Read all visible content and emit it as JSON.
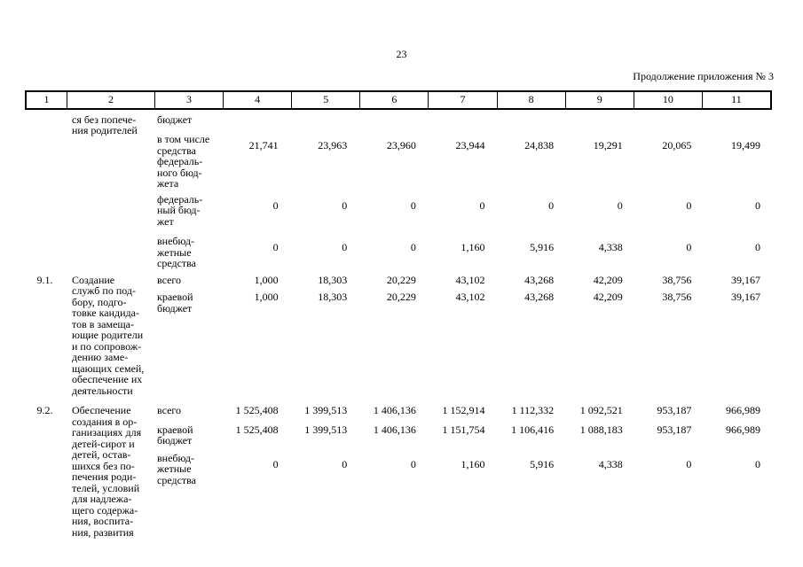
{
  "page": {
    "number": "23",
    "continuation": "Продолжение приложения № 3"
  },
  "table": {
    "columns": [
      "1",
      "2",
      "3",
      "4",
      "5",
      "6",
      "7",
      "8",
      "9",
      "10",
      "11"
    ],
    "sections": [
      {
        "num": "",
        "name": "ся без попече-\nния родителей",
        "rows": [
          {
            "label": "бюджет",
            "values": []
          },
          {
            "label": "в том числе\nсредства\nфедераль-\nного бюд-\nжета",
            "values": [
              "21,741",
              "23,963",
              "23,960",
              "23,944",
              "24,838",
              "19,291",
              "20,065",
              "19,499"
            ]
          },
          {
            "label": "федераль-\nный бюд-\nжет",
            "values": [
              "0",
              "0",
              "0",
              "0",
              "0",
              "0",
              "0",
              "0"
            ]
          },
          {
            "label": "внебюд-\nжетные\nсредства",
            "values": [
              "0",
              "0",
              "0",
              "1,160",
              "5,916",
              "4,338",
              "0",
              "0"
            ]
          }
        ]
      },
      {
        "num": "9.1.",
        "name": "Создание\nслужб по под-\nбору, подго-\nтовке кандида-\nтов в замеща-\nющие родители\nи по сопровож-\nдению заме-\nщающих семей,\nобеспечение их\nдеятельности",
        "rows": [
          {
            "label": "всего",
            "values": [
              "1,000",
              "18,303",
              "20,229",
              "43,102",
              "43,268",
              "42,209",
              "38,756",
              "39,167"
            ]
          },
          {
            "label": "краевой\nбюджет",
            "values": [
              "1,000",
              "18,303",
              "20,229",
              "43,102",
              "43,268",
              "42,209",
              "38,756",
              "39,167"
            ]
          }
        ]
      },
      {
        "num": "9.2.",
        "name": "Обеспечение\nсоздания в ор-\nганизациях для\nдетей-сирот и\nдетей, остав-\nшихся без по-\nпечения роди-\nтелей, условий\nдля надлежа-\nщего содержа-\nния, воспита-\nния, развития",
        "rows": [
          {
            "label": "всего",
            "values": [
              "1 525,408",
              "1 399,513",
              "1 406,136",
              "1 152,914",
              "1 112,332",
              "1 092,521",
              "953,187",
              "966,989"
            ]
          },
          {
            "label": "краевой\nбюджет",
            "values": [
              "1 525,408",
              "1 399,513",
              "1 406,136",
              "1 151,754",
              "1 106,416",
              "1 088,183",
              "953,187",
              "966,989"
            ]
          },
          {
            "label": "внебюд-\nжетные\nсредства",
            "values": [
              "0",
              "0",
              "0",
              "1,160",
              "5,916",
              "4,338",
              "0",
              "0"
            ]
          }
        ]
      }
    ]
  }
}
